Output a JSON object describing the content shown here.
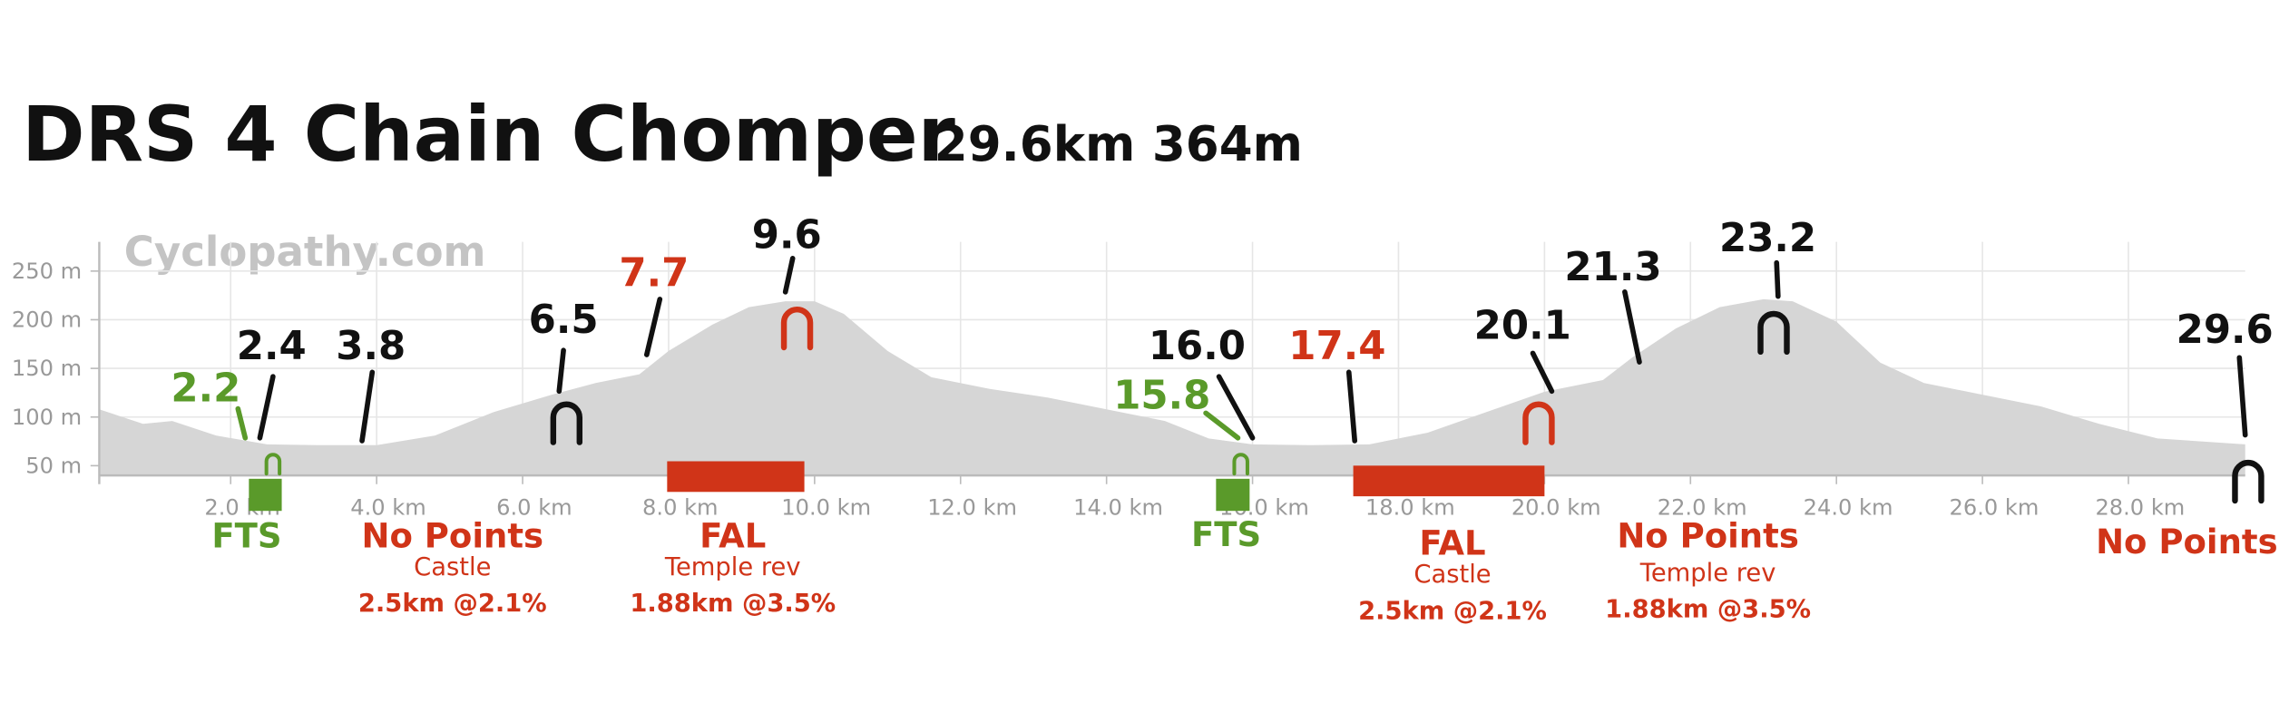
{
  "chart_data": {
    "type": "area",
    "title": "DRS 4 Chain Chomper",
    "subtitle": "29.6km 364m",
    "watermark": "Cyclopathy.com",
    "color": "#d6d6d6",
    "grid": true,
    "x": [
      0.2,
      0.8,
      1.2,
      1.8,
      2.5,
      3.2,
      4.0,
      4.8,
      5.6,
      6.4,
      7.0,
      7.6,
      8.0,
      8.6,
      9.1,
      9.6,
      10.0,
      10.4,
      11.0,
      11.6,
      12.4,
      13.2,
      14.0,
      14.8,
      15.4,
      16.0,
      16.8,
      17.6,
      18.4,
      19.2,
      20.0,
      20.8,
      21.2,
      21.8,
      22.4,
      23.0,
      23.4,
      24.0,
      24.6,
      25.2,
      26.0,
      26.8,
      27.6,
      28.4,
      29.6
    ],
    "values": [
      108,
      93,
      96,
      81,
      72,
      71,
      71,
      81,
      105,
      123,
      135,
      144,
      168,
      195,
      213,
      219,
      219,
      206,
      168,
      141,
      129,
      120,
      108,
      96,
      78,
      72,
      71,
      72,
      84,
      105,
      126,
      138,
      161,
      191,
      213,
      221,
      219,
      198,
      156,
      135,
      123,
      111,
      93,
      78,
      72
    ],
    "xlim": [
      0.2,
      29.6
    ],
    "ylim": [
      40,
      280
    ],
    "xticks": [
      {
        "value": 2,
        "label": "2.0 km"
      },
      {
        "value": 4,
        "label": "4.0 km"
      },
      {
        "value": 6,
        "label": "6.0 km"
      },
      {
        "value": 8,
        "label": "8.0 km"
      },
      {
        "value": 10,
        "label": "10.0 km"
      },
      {
        "value": 12,
        "label": "12.0 km"
      },
      {
        "value": 14,
        "label": "14.0 km"
      },
      {
        "value": 16,
        "label": "16.0 km"
      },
      {
        "value": 18,
        "label": "18.0 km"
      },
      {
        "value": 20,
        "label": "20.0 km"
      },
      {
        "value": 22,
        "label": "22.0 km"
      },
      {
        "value": 24,
        "label": "24.0 km"
      },
      {
        "value": 26,
        "label": "26.0 km"
      },
      {
        "value": 28,
        "label": "28.0 km"
      }
    ],
    "yticks": [
      {
        "value": 50,
        "label": "50 m"
      },
      {
        "value": 100,
        "label": "100 m"
      },
      {
        "value": 150,
        "label": "150 m"
      },
      {
        "value": 200,
        "label": "200 m"
      },
      {
        "value": 250,
        "label": "250 m"
      }
    ],
    "markers": [
      {
        "km": 2.2,
        "color": "#5a9a2a",
        "leader_color": "#5a9a2a"
      },
      {
        "km": 2.4,
        "color": "#111111",
        "leader_color": "#111111",
        "icon": {
          "color": "#5a9a2a",
          "size": "small"
        }
      },
      {
        "km": 3.8,
        "color": "#111111",
        "leader_color": "#111111"
      },
      {
        "km": 6.5,
        "color": "#111111",
        "leader_color": "#111111",
        "icon": {
          "color": "#111111",
          "size": "large"
        }
      },
      {
        "km": 7.7,
        "color": "#d03418",
        "leader_color": "#111111"
      },
      {
        "km": 9.6,
        "color": "#111111",
        "leader_color": "#111111",
        "icon": {
          "color": "#d03418",
          "size": "large"
        }
      },
      {
        "km": 15.8,
        "color": "#5a9a2a",
        "leader_color": "#5a9a2a"
      },
      {
        "km": {
          "value": 16,
          "label": "16.0"
        },
        "color": "#111111",
        "leader_color": "#111111",
        "icon": {
          "color": "#5a9a2a",
          "size": "small"
        }
      },
      {
        "km": 17.4,
        "color": "#d03418",
        "leader_color": "#111111"
      },
      {
        "km": 20.1,
        "color": "#111111",
        "leader_color": "#111111",
        "icon": {
          "color": "#d03418",
          "size": "large"
        }
      },
      {
        "km": 21.3,
        "color": "#111111",
        "leader_color": "#111111"
      },
      {
        "km": 23.2,
        "color": "#111111",
        "leader_color": "#111111",
        "icon": {
          "color": "#111111",
          "size": "large"
        }
      },
      {
        "km": 29.6,
        "color": "#111111",
        "leader_color": "#111111",
        "icon": {
          "color": "#111111",
          "size": "large"
        }
      }
    ],
    "sections": [
      {
        "start": 2.25,
        "end": 2.7,
        "color": "#5a9a2a"
      },
      {
        "start": 7.98,
        "end": 9.86,
        "color": "#d03418"
      },
      {
        "start": 15.5,
        "end": 15.96,
        "color": "#5a9a2a"
      },
      {
        "start": 17.38,
        "end": 20.0,
        "color": "#d03418"
      }
    ],
    "annotations": [
      {
        "color": "#5a9a2a",
        "lines": [
          "FTS"
        ]
      },
      {
        "color": "#d03418",
        "lines": [
          "No Points",
          "Castle",
          "2.5km @2.1%"
        ]
      },
      {
        "color": "#d03418",
        "lines": [
          "FAL",
          "Temple rev",
          "1.88km @3.5%"
        ]
      },
      {
        "color": "#5a9a2a",
        "lines": [
          "FTS"
        ]
      },
      {
        "color": "#d03418",
        "lines": [
          "FAL",
          "Castle",
          "2.5km @2.1%"
        ]
      },
      {
        "color": "#d03418",
        "lines": [
          "No Points",
          "Temple rev",
          "1.88km @3.5%"
        ]
      },
      {
        "color": "#d03418",
        "lines": [
          "No Points"
        ]
      }
    ]
  }
}
